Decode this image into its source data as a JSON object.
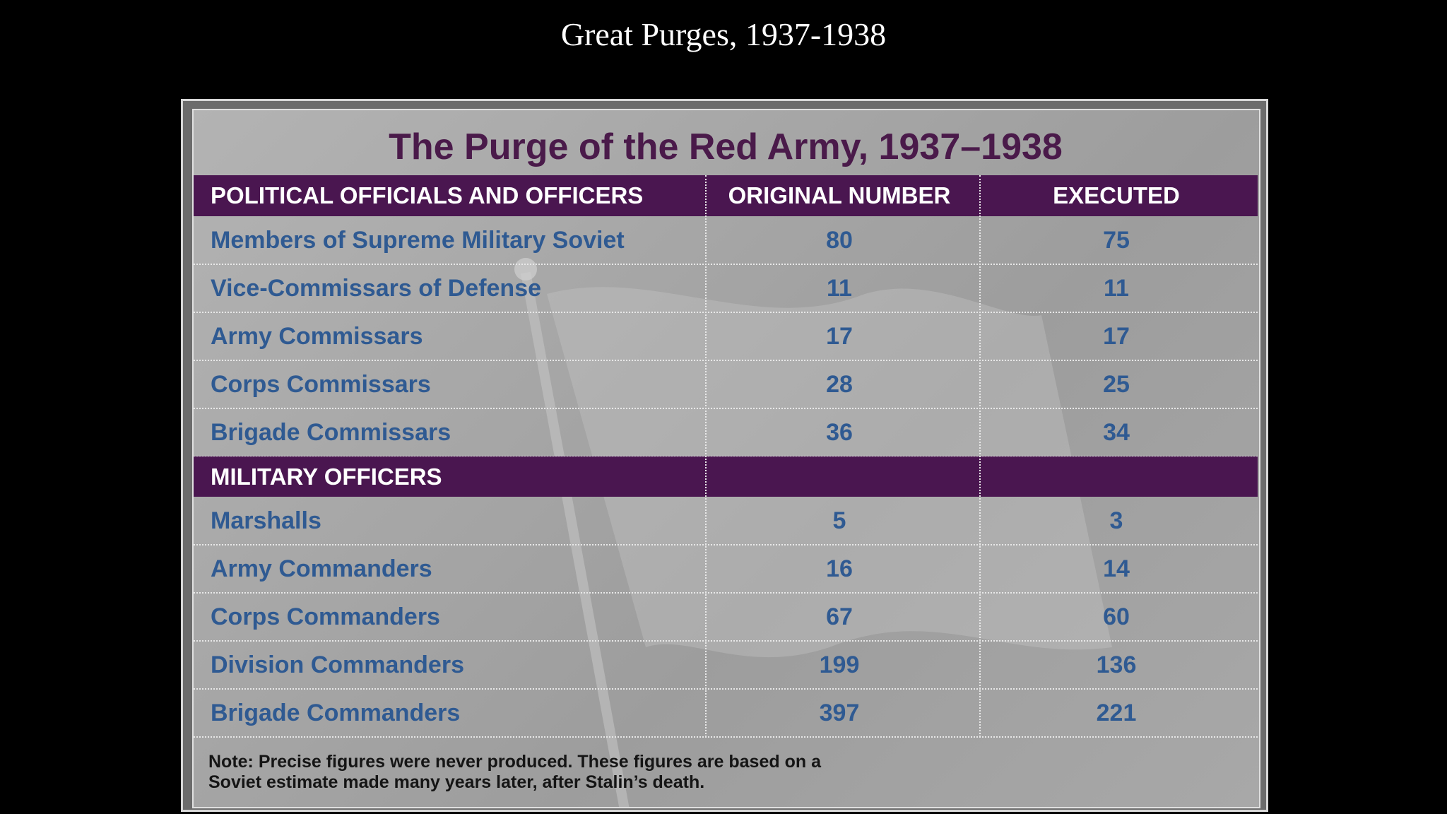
{
  "slide_title": "Great Purges, 1937-1938",
  "table": {
    "title": "The Purge of the Red Army, 1937–1938",
    "header": [
      "POLITICAL OFFICIALS AND OFFICERS",
      "ORIGINAL NUMBER",
      "EXECUTED"
    ],
    "political_rows": [
      [
        "Members of Supreme Military Soviet",
        80,
        75
      ],
      [
        "Vice-Commissars of Defense",
        11,
        11
      ],
      [
        "Army Commissars",
        17,
        17
      ],
      [
        "Corps Commissars",
        28,
        25
      ],
      [
        "Brigade Commissars",
        36,
        34
      ]
    ],
    "military_heading": "MILITARY OFFICERS",
    "military_rows": [
      [
        "Marshalls",
        5,
        3
      ],
      [
        "Army Commanders",
        16,
        14
      ],
      [
        "Corps Commanders",
        67,
        60
      ],
      [
        "Division Commanders",
        199,
        136
      ],
      [
        "Brigade Commanders",
        397,
        221
      ]
    ],
    "note": [
      "Note: Precise figures were never produced. These figures are based on a",
      "Soviet estimate made many years later, after Stalin’s death."
    ]
  }
}
